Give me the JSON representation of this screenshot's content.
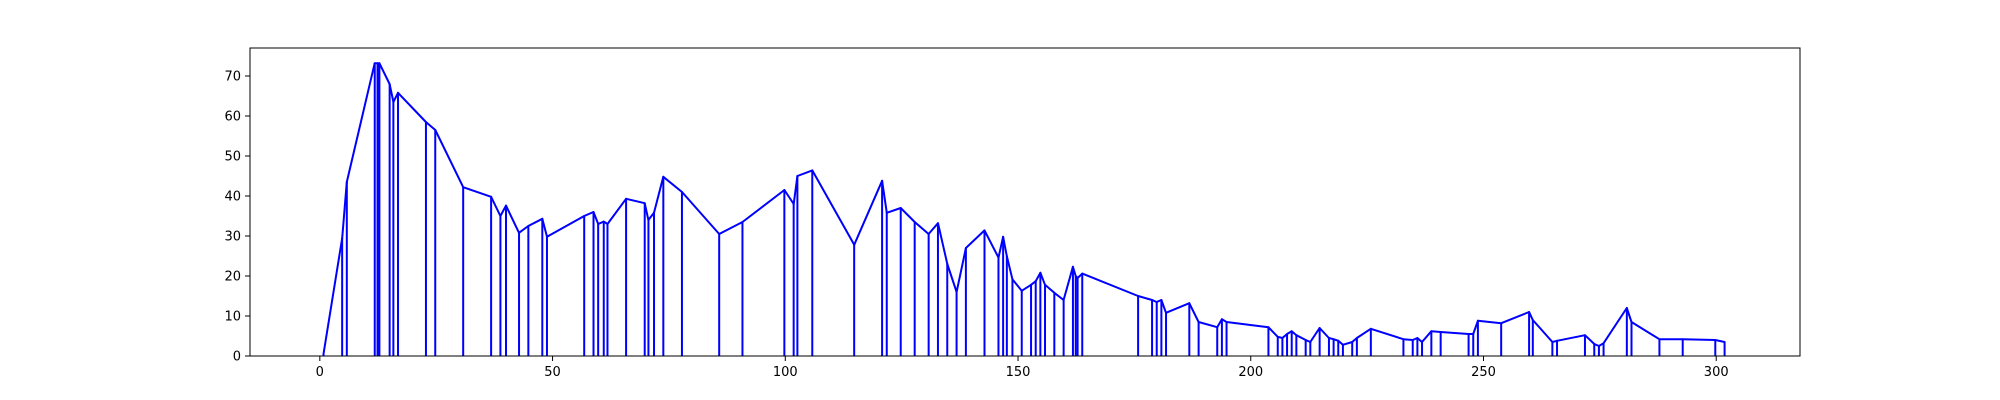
{
  "chart_data": {
    "type": "line",
    "title": "",
    "xlabel": "",
    "ylabel": "",
    "xlim": [
      -15,
      318
    ],
    "ylim": [
      0,
      77
    ],
    "xticks": [
      0,
      50,
      100,
      150,
      200,
      250,
      300
    ],
    "yticks": [
      0,
      10,
      20,
      30,
      40,
      50,
      60,
      70
    ],
    "grid": false,
    "legend": "none",
    "series": [
      {
        "color": "#0000ff",
        "drop_lines_to_zero": true,
        "x": [
          0.8,
          4.8,
          5.8,
          11.8,
          12.4,
          12.8,
          15.0,
          15.8,
          16.8,
          22.8,
          24.8,
          30.8,
          36.8,
          38.8,
          40.0,
          42.8,
          44.8,
          47.8,
          48.8,
          56.8,
          58.8,
          59.8,
          61.0,
          61.8,
          65.8,
          69.8,
          70.6,
          71.8,
          73.8,
          77.8,
          85.8,
          90.8,
          99.8,
          101.8,
          102.6,
          105.8,
          114.8,
          120.8,
          121.8,
          124.8,
          127.8,
          130.8,
          132.8,
          134.8,
          136.8,
          138.8,
          142.8,
          145.8,
          146.8,
          147.6,
          148.8,
          150.8,
          152.8,
          153.8,
          154.8,
          155.8,
          157.8,
          159.8,
          161.8,
          162.4,
          162.8,
          163.8,
          175.8,
          178.8,
          179.8,
          180.8,
          181.8,
          186.8,
          188.8,
          192.8,
          193.8,
          194.8,
          203.8,
          205.8,
          206.8,
          207.8,
          208.8,
          209.8,
          211.8,
          212.8,
          214.8,
          216.8,
          217.8,
          218.8,
          219.8,
          221.8,
          222.8,
          225.8,
          232.8,
          234.8,
          235.8,
          236.8,
          238.8,
          240.8,
          246.8,
          247.8,
          248.8,
          253.8,
          259.8,
          260.6,
          264.8,
          265.8,
          271.8,
          273.8,
          274.8,
          275.8,
          280.8,
          281.8,
          287.8,
          292.8,
          299.8,
          301.8
        ],
        "y": [
          0.5,
          29.5,
          43.5,
          73.2,
          73.2,
          73.2,
          68.0,
          63.5,
          65.8,
          58.5,
          56.5,
          42.2,
          39.8,
          35.0,
          37.6,
          30.8,
          32.5,
          34.3,
          29.8,
          35.0,
          36.0,
          33.0,
          33.6,
          33.0,
          39.3,
          38.2,
          34.0,
          35.8,
          44.8,
          41.0,
          30.5,
          33.5,
          41.5,
          38.0,
          45.0,
          46.4,
          27.8,
          43.8,
          35.8,
          37.0,
          33.5,
          30.5,
          33.2,
          23.0,
          16.0,
          27.0,
          31.4,
          24.6,
          29.8,
          25.0,
          19.2,
          16.3,
          17.8,
          18.7,
          20.8,
          17.8,
          15.8,
          14.0,
          22.3,
          20.0,
          19.5,
          20.6,
          15.0,
          14.0,
          13.5,
          14.0,
          10.8,
          13.2,
          8.5,
          7.2,
          9.2,
          8.5,
          7.2,
          4.8,
          4.5,
          5.5,
          6.2,
          5.2,
          4.0,
          3.5,
          7.0,
          4.5,
          4.2,
          3.8,
          2.8,
          3.5,
          4.5,
          6.8,
          4.2,
          4.0,
          4.5,
          3.5,
          6.2,
          6.0,
          5.5,
          5.5,
          8.8,
          8.2,
          11.0,
          9.0,
          3.5,
          3.8,
          5.2,
          3.0,
          2.5,
          3.2,
          12.0,
          8.5,
          4.2,
          4.2,
          4.0,
          3.5
        ]
      }
    ]
  }
}
